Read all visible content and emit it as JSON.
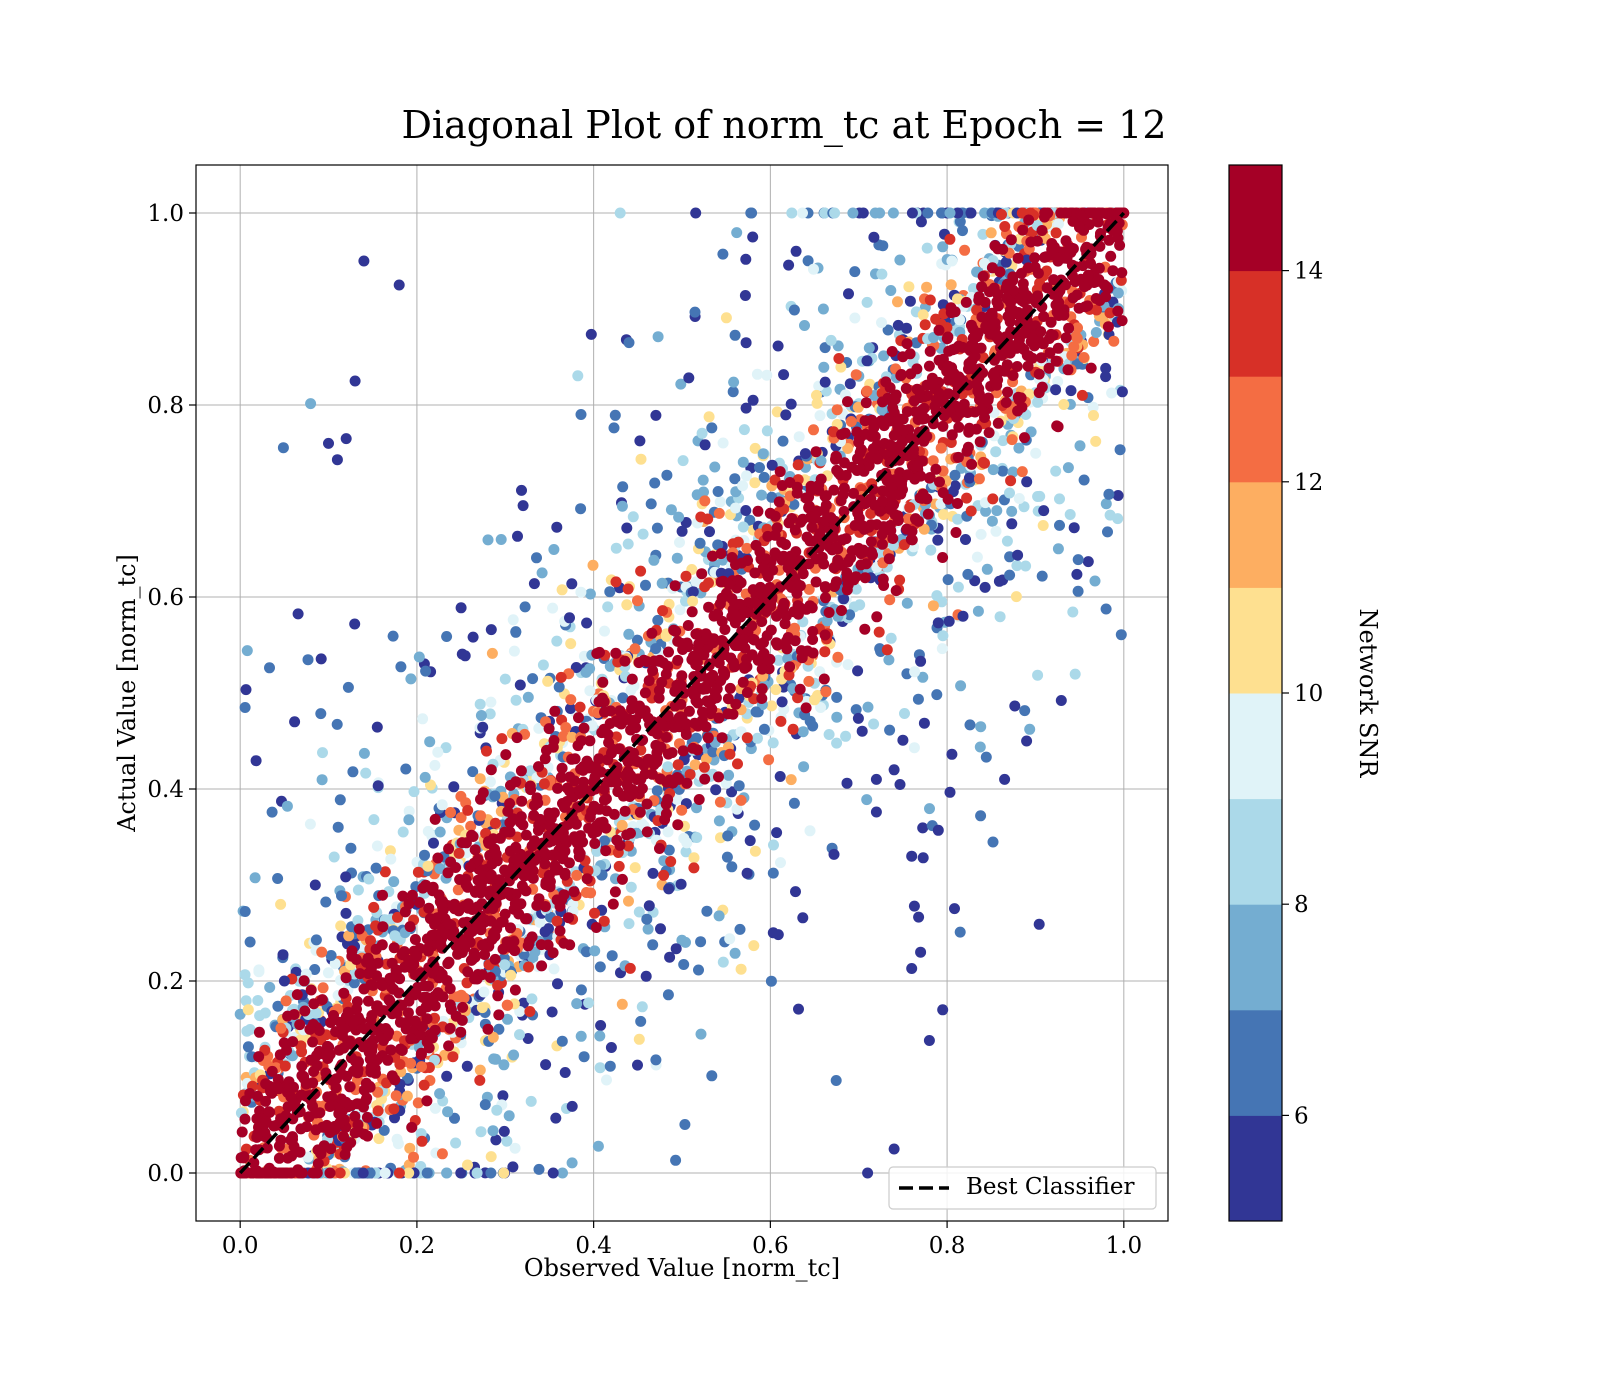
{
  "chart_data": {
    "type": "scatter",
    "title": "Diagonal Plot of norm_tc at Epoch = 12",
    "xlabel": "Observed Value [norm_tc]",
    "ylabel": "Actual Value [norm_tc]",
    "xlim": [
      -0.05,
      1.05
    ],
    "ylim": [
      -0.05,
      1.05
    ],
    "xticks": [
      0.0,
      0.2,
      0.4,
      0.6,
      0.8,
      1.0
    ],
    "yticks": [
      0.0,
      0.2,
      0.4,
      0.6,
      0.8,
      1.0
    ],
    "xtick_labels": [
      "0.0",
      "0.2",
      "0.4",
      "0.6",
      "0.8",
      "1.0"
    ],
    "ytick_labels": [
      "0.0",
      "0.2",
      "0.4",
      "0.6",
      "0.8",
      "1.0"
    ],
    "grid": true,
    "legend": {
      "position": "lower-right",
      "entries": [
        "Best Classifier"
      ]
    },
    "reference_line": {
      "name": "Best Classifier",
      "x": [
        0.0,
        1.0
      ],
      "y": [
        0.0,
        1.0
      ],
      "style": "dashed",
      "color": "#000000"
    },
    "colorbar": {
      "label": "Network SNR",
      "min": 5,
      "max": 15,
      "ticks": [
        6,
        8,
        10,
        12,
        14
      ],
      "tick_labels": [
        "6",
        "8",
        "10",
        "12",
        "14"
      ],
      "colors": [
        "#313695",
        "#4575b4",
        "#74add1",
        "#abd9e9",
        "#e0f3f8",
        "#fee090",
        "#fdae61",
        "#f46d43",
        "#d73027",
        "#a50026"
      ]
    },
    "points": {
      "description_of_distribution": "dense band along y=x for high SNR (>=14), lower-SNR points scattered further from diagonal",
      "outliers": [
        [
          0.89,
          0.45
        ],
        [
          0.843,
          0.61
        ],
        [
          0.818,
          0.58
        ],
        [
          0.79,
          0.573
        ],
        [
          0.79,
          0.357
        ],
        [
          0.795,
          0.17
        ],
        [
          0.78,
          0.138
        ],
        [
          0.77,
          0.23
        ],
        [
          0.76,
          0.213
        ],
        [
          0.763,
          0.278
        ],
        [
          0.76,
          0.33
        ],
        [
          0.77,
          0.533
        ],
        [
          0.72,
          0.376
        ],
        [
          0.72,
          0.41
        ],
        [
          0.74,
          0.42
        ],
        [
          0.13,
          0.825
        ],
        [
          0.12,
          0.765
        ],
        [
          0.11,
          0.743
        ],
        [
          0.14,
          0.95
        ],
        [
          0.18,
          0.925
        ],
        [
          0.1,
          0.76
        ],
        [
          0.085,
          0.3
        ],
        [
          0.05,
          0.2
        ],
        [
          0.71,
          0.0
        ],
        [
          0.74,
          0.025
        ]
      ]
    }
  }
}
